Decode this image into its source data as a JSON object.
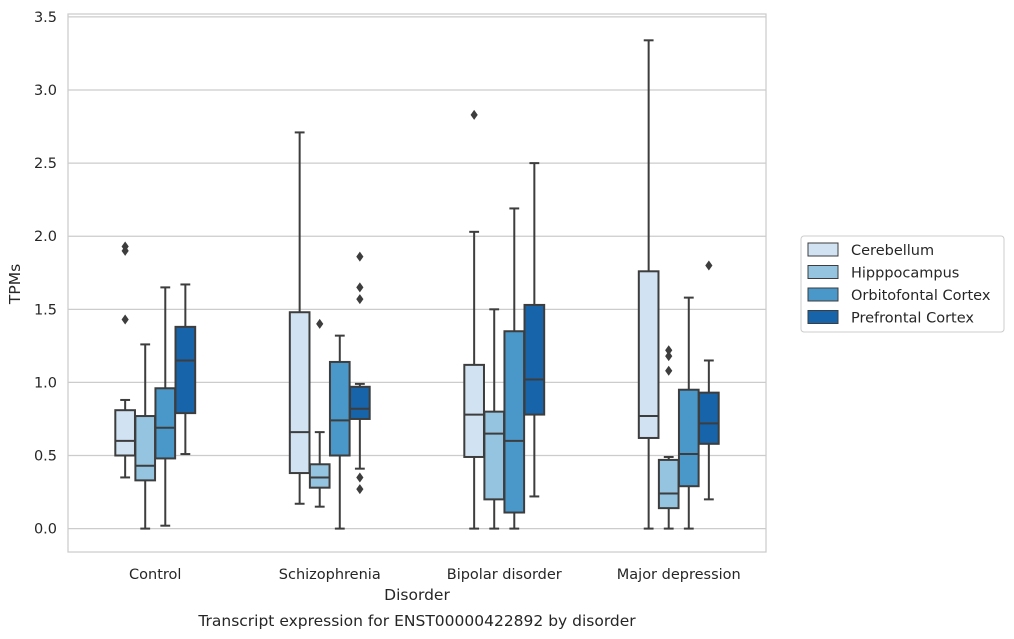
{
  "chart_data": {
    "type": "box",
    "title": "",
    "caption": "Transcript expression for ENST00000422892 by disorder",
    "xlabel": "Disorder",
    "ylabel": "TPMs",
    "ylim": [
      -0.16,
      3.52
    ],
    "yticks": [
      0.0,
      0.5,
      1.0,
      1.5,
      2.0,
      2.5,
      3.0,
      3.5
    ],
    "ytick_labels": [
      "0.0",
      "0.5",
      "1.0",
      "1.5",
      "2.0",
      "2.5",
      "3.0",
      "3.5"
    ],
    "grid": "horizontal",
    "legend_position": "right",
    "categories": [
      "Control",
      "Schizophrenia",
      "Bipolar disorder",
      "Major depression"
    ],
    "series": [
      {
        "name": "Cerebellum",
        "color": "#d1e2f2",
        "boxes": [
          {
            "whisker_low": 0.35,
            "q1": 0.5,
            "median": 0.6,
            "q3": 0.81,
            "whisker_high": 0.88,
            "outliers": [
              1.43,
              1.9,
              1.93
            ]
          },
          {
            "whisker_low": 0.17,
            "q1": 0.38,
            "median": 0.66,
            "q3": 1.48,
            "whisker_high": 2.71,
            "outliers": []
          },
          {
            "whisker_low": 0.0,
            "q1": 0.49,
            "median": 0.78,
            "q3": 1.12,
            "whisker_high": 2.03,
            "outliers": [
              2.83
            ]
          },
          {
            "whisker_low": 0.0,
            "q1": 0.62,
            "median": 0.77,
            "q3": 1.76,
            "whisker_high": 3.34,
            "outliers": []
          }
        ]
      },
      {
        "name": "Hipppocampus",
        "color": "#94c4df",
        "boxes": [
          {
            "whisker_low": 0.0,
            "q1": 0.33,
            "median": 0.43,
            "q3": 0.77,
            "whisker_high": 1.26,
            "outliers": []
          },
          {
            "whisker_low": 0.15,
            "q1": 0.28,
            "median": 0.35,
            "q3": 0.44,
            "whisker_high": 0.66,
            "outliers": [
              1.4
            ]
          },
          {
            "whisker_low": 0.0,
            "q1": 0.2,
            "median": 0.65,
            "q3": 0.8,
            "whisker_high": 1.5,
            "outliers": []
          },
          {
            "whisker_low": 0.0,
            "q1": 0.14,
            "median": 0.24,
            "q3": 0.47,
            "whisker_high": 0.49,
            "outliers": [
              1.08,
              1.18,
              1.22
            ]
          }
        ]
      },
      {
        "name": "Orbitofontal Cortex",
        "color": "#4a98c9",
        "boxes": [
          {
            "whisker_low": 0.02,
            "q1": 0.48,
            "median": 0.69,
            "q3": 0.96,
            "whisker_high": 1.65,
            "outliers": []
          },
          {
            "whisker_low": 0.0,
            "q1": 0.5,
            "median": 0.74,
            "q3": 1.14,
            "whisker_high": 1.32,
            "outliers": []
          },
          {
            "whisker_low": 0.0,
            "q1": 0.11,
            "median": 0.6,
            "q3": 1.35,
            "whisker_high": 2.19,
            "outliers": []
          },
          {
            "whisker_low": 0.0,
            "q1": 0.29,
            "median": 0.51,
            "q3": 0.95,
            "whisker_high": 1.58,
            "outliers": []
          }
        ]
      },
      {
        "name": "Prefrontal Cortex",
        "color": "#1764ab",
        "boxes": [
          {
            "whisker_low": 0.51,
            "q1": 0.79,
            "median": 1.15,
            "q3": 1.38,
            "whisker_high": 1.67,
            "outliers": []
          },
          {
            "whisker_low": 0.41,
            "q1": 0.75,
            "median": 0.82,
            "q3": 0.97,
            "whisker_high": 0.99,
            "outliers": [
              0.27,
              0.35,
              1.57,
              1.65,
              1.86
            ]
          },
          {
            "whisker_low": 0.22,
            "q1": 0.78,
            "median": 1.02,
            "q3": 1.53,
            "whisker_high": 2.5,
            "outliers": []
          },
          {
            "whisker_low": 0.2,
            "q1": 0.58,
            "median": 0.72,
            "q3": 0.93,
            "whisker_high": 1.15,
            "outliers": [
              1.8
            ]
          }
        ]
      }
    ]
  }
}
